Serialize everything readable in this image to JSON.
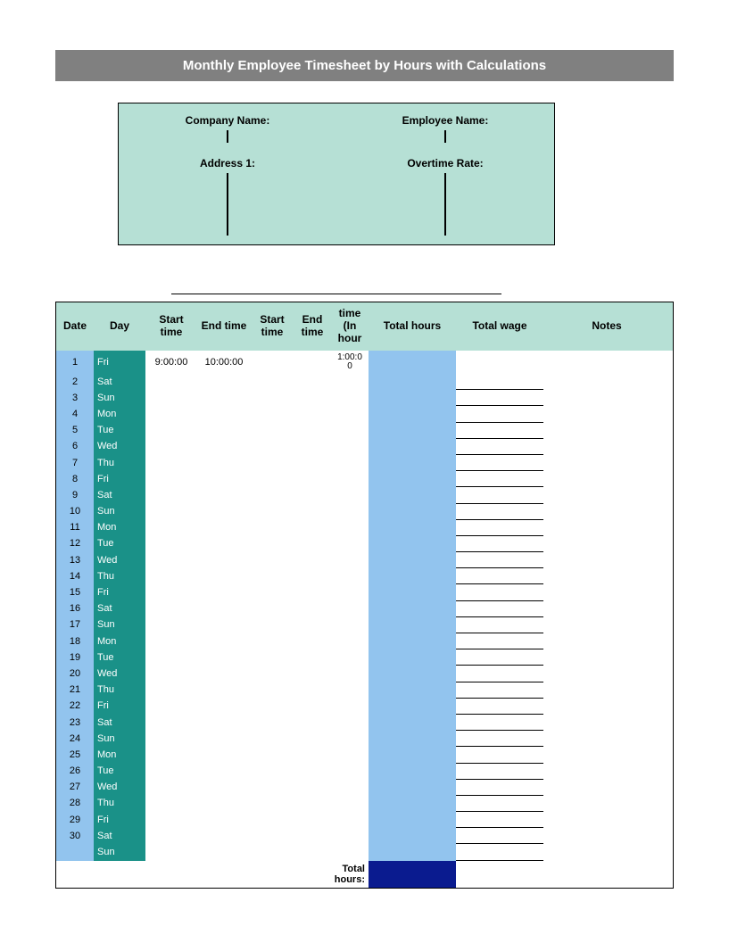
{
  "colors": {
    "title_bg": "#808080",
    "title_fg": "#ffffff",
    "info_bg": "#b6e0d5",
    "header_bg": "#b6e0d5",
    "date_col_bg": "#92c4ee",
    "day_col_bg": "#1a9188",
    "day_col_fg": "#ffffff",
    "thours_col_bg": "#92c4ee",
    "total_thours_bg": "#0a1b8f",
    "border": "#000000"
  },
  "title": "Monthly Employee Timesheet by Hours with Calculations",
  "info": {
    "company_label": "Company Name:",
    "employee_label": "Employee Name:",
    "address_label": "Address 1:",
    "overtime_label": "Overtime Rate:"
  },
  "columns": {
    "date": "Date",
    "day": "Day",
    "start": "Start time",
    "end": "End time",
    "start2": "Start time",
    "end2": "End time",
    "time": "time (In hour",
    "thours": "Total hours",
    "twage": "Total wage",
    "notes": "Notes"
  },
  "first_row": {
    "start": "9:00:00",
    "end": "10:00:00",
    "time": "1:00:00"
  },
  "rows": [
    {
      "date": "1",
      "day": "Fri"
    },
    {
      "date": "2",
      "day": "Sat"
    },
    {
      "date": "3",
      "day": "Sun"
    },
    {
      "date": "4",
      "day": "Mon"
    },
    {
      "date": "5",
      "day": "Tue"
    },
    {
      "date": "6",
      "day": "Wed"
    },
    {
      "date": "7",
      "day": "Thu"
    },
    {
      "date": "8",
      "day": "Fri"
    },
    {
      "date": "9",
      "day": "Sat"
    },
    {
      "date": "10",
      "day": "Sun"
    },
    {
      "date": "11",
      "day": "Mon"
    },
    {
      "date": "12",
      "day": "Tue"
    },
    {
      "date": "13",
      "day": "Wed"
    },
    {
      "date": "14",
      "day": "Thu"
    },
    {
      "date": "15",
      "day": "Fri"
    },
    {
      "date": "16",
      "day": "Sat"
    },
    {
      "date": "17",
      "day": "Sun"
    },
    {
      "date": "18",
      "day": "Mon"
    },
    {
      "date": "19",
      "day": "Tue"
    },
    {
      "date": "20",
      "day": "Wed"
    },
    {
      "date": "21",
      "day": "Thu"
    },
    {
      "date": "22",
      "day": "Fri"
    },
    {
      "date": "23",
      "day": "Sat"
    },
    {
      "date": "24",
      "day": "Sun"
    },
    {
      "date": "25",
      "day": "Mon"
    },
    {
      "date": "26",
      "day": "Tue"
    },
    {
      "date": "27",
      "day": "Wed"
    },
    {
      "date": "28",
      "day": "Thu"
    },
    {
      "date": "29",
      "day": "Fri"
    },
    {
      "date": "30",
      "day": "Sat"
    },
    {
      "date": "",
      "day": "Sun"
    }
  ],
  "totals": {
    "label1": "Total",
    "label2": "hours:"
  }
}
